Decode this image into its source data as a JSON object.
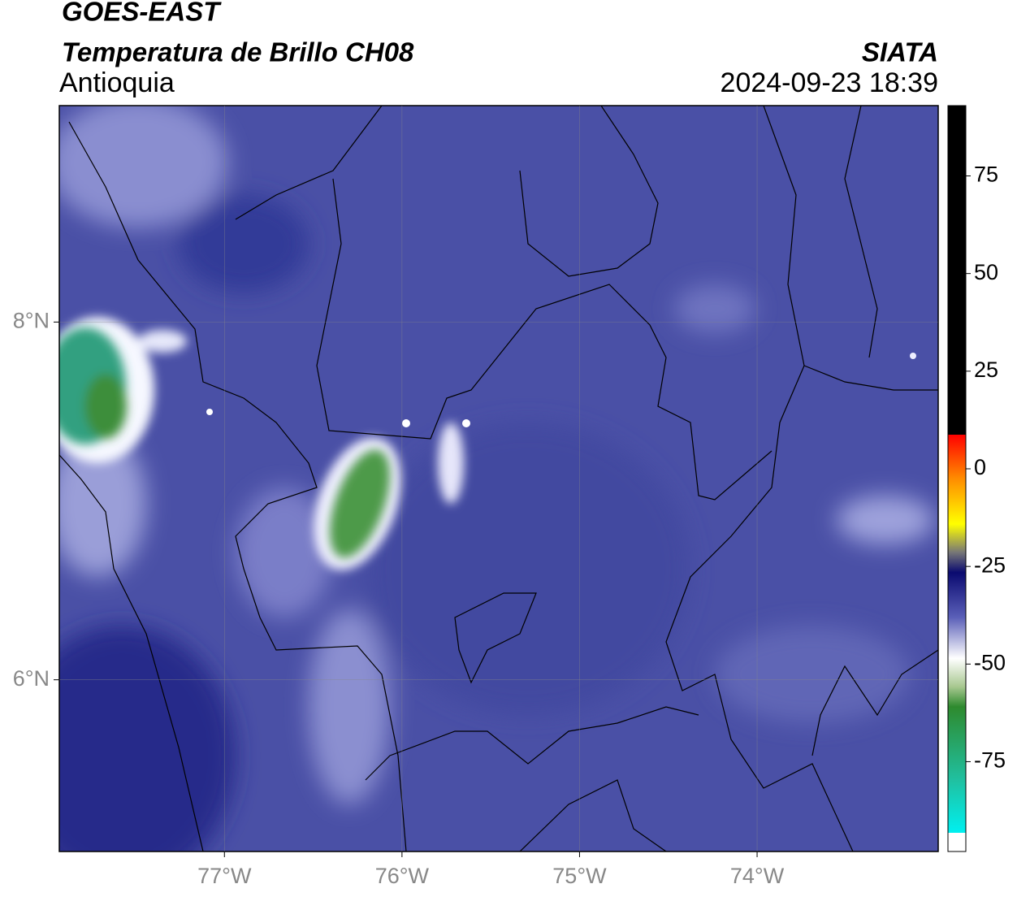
{
  "chart_data": {
    "type": "map",
    "title": "GOES-EAST",
    "subtitle": "Temperatura de Brillo CH08",
    "region": "Antioquia",
    "source": "SIATA",
    "timestamp": "2024-09-23 18:39",
    "xlim": [
      -77.93,
      -72.98
    ],
    "ylim": [
      5.04,
      9.21
    ],
    "xticks": [
      {
        "value": -77,
        "label": "77°W"
      },
      {
        "value": -76,
        "label": "76°W"
      },
      {
        "value": -75,
        "label": "75°W"
      },
      {
        "value": -74,
        "label": "74°W"
      }
    ],
    "yticks": [
      {
        "value": 6,
        "label": "6°N"
      },
      {
        "value": 8,
        "label": "8°N"
      }
    ],
    "grid": true,
    "colorbar_lim": [
      -98,
      93
    ],
    "colorbar_ticks": [
      75,
      50,
      25,
      0,
      -25,
      -50,
      -75
    ]
  }
}
